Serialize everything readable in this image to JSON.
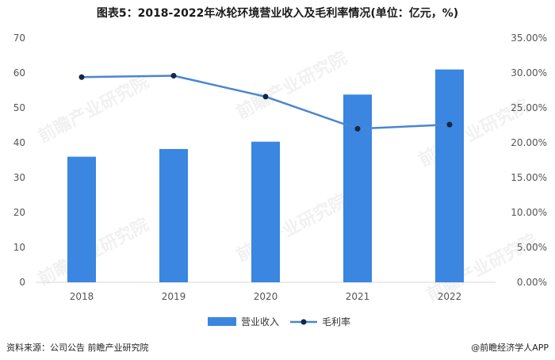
{
  "title": "图表5：2018-2022年冰轮环境营业收入及毛利率情况(单位：亿元，%)",
  "source": "资料来源：公司公告 前瞻产业研究院",
  "brand": "@前瞻经济学人APP",
  "watermark": "前瞻产业研究院",
  "colors": {
    "bar": "#3a86e0",
    "line": "#4a86d0",
    "marker": "#14264a",
    "axis_text": "#555555",
    "grid": "#d9d9d9"
  },
  "chart_data": {
    "type": "bar+line",
    "categories": [
      "2018",
      "2019",
      "2020",
      "2021",
      "2022"
    ],
    "series": [
      {
        "name": "营业收入",
        "type": "bar",
        "axis": "left",
        "values": [
          36,
          38.2,
          40.3,
          53.8,
          61
        ]
      },
      {
        "name": "毛利率",
        "type": "line",
        "axis": "right",
        "values": [
          29.4,
          29.6,
          26.6,
          22.0,
          22.6
        ]
      }
    ],
    "y_left": {
      "min": 0,
      "max": 70,
      "ticks": [
        "0",
        "10",
        "20",
        "30",
        "40",
        "50",
        "60",
        "70"
      ]
    },
    "y_right": {
      "min": 0,
      "max": 35,
      "ticks": [
        "0.00%",
        "5.00%",
        "10.00%",
        "15.00%",
        "20.00%",
        "25.00%",
        "30.00%",
        "35.00%"
      ]
    },
    "legend_position": "bottom",
    "grid": false
  }
}
